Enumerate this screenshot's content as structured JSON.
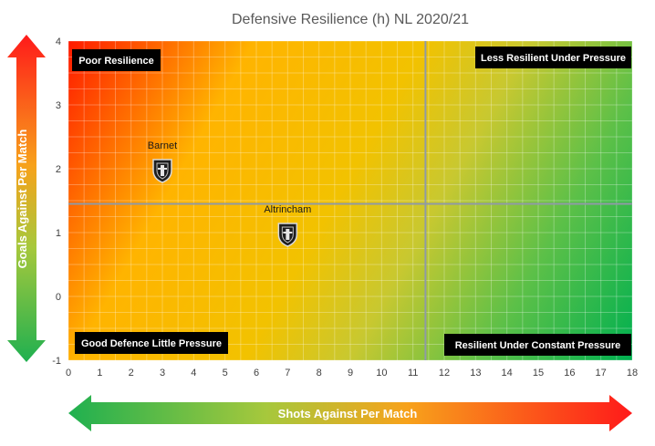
{
  "chart_data": {
    "type": "scatter",
    "title": "Defensive Resilience (h) NL 2020/21",
    "xlabel": "Shots Against Per Match",
    "ylabel": "Goals Against Per Match",
    "xlim": [
      0,
      18
    ],
    "ylim": [
      -1,
      4
    ],
    "x_ticks": [
      "0",
      "1",
      "2",
      "3",
      "4",
      "5",
      "6",
      "7",
      "8",
      "9",
      "10",
      "11",
      "12",
      "13",
      "14",
      "15",
      "16",
      "17",
      "18"
    ],
    "y_ticks": [
      "-1",
      "0",
      "1",
      "2",
      "3",
      "4"
    ],
    "reference_lines": {
      "x": 11.4,
      "y": 1.45
    },
    "quadrant_labels": {
      "top_left": "Poor Resilience",
      "top_right": "Less Resilient Under Pressure",
      "bottom_left": "Good Defence Little Pressure",
      "bottom_right": "Resilient Under Constant Pressure"
    },
    "points": [
      {
        "name": "Barnet",
        "x": 3,
        "y": 2
      },
      {
        "name": "Altrincham",
        "x": 7,
        "y": 1
      }
    ],
    "colors": {
      "red": "#ff1a00",
      "orange": "#ffb400",
      "yellow": "#f5c400",
      "green": "#00b050",
      "gridline": "#e6e6e6",
      "refline": "#8f9aa6",
      "label_bg": "#000000"
    }
  }
}
